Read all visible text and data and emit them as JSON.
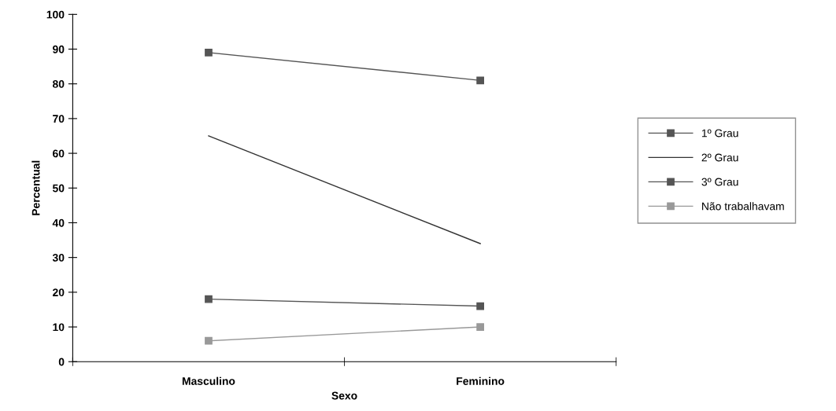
{
  "chart_data": {
    "type": "line",
    "xlabel": "Sexo",
    "ylabel": "Percentual",
    "categories": [
      "Masculino",
      "Feminino"
    ],
    "series": [
      {
        "name": "1º Grau",
        "color": "#555555",
        "marker": "square",
        "values": [
          89,
          81
        ]
      },
      {
        "name": "2º Grau",
        "color": "#333333",
        "marker": "none",
        "values": [
          65,
          34
        ]
      },
      {
        "name": "3º Grau",
        "color": "#555555",
        "marker": "square",
        "values": [
          18,
          16
        ]
      },
      {
        "name": "Não trabalhavam",
        "color": "#999999",
        "marker": "square",
        "values": [
          6,
          10
        ]
      }
    ],
    "ylim": [
      0,
      100
    ],
    "yticks": [
      0,
      10,
      20,
      30,
      40,
      50,
      60,
      70,
      80,
      90,
      100
    ],
    "grid": false,
    "legend": "right"
  }
}
